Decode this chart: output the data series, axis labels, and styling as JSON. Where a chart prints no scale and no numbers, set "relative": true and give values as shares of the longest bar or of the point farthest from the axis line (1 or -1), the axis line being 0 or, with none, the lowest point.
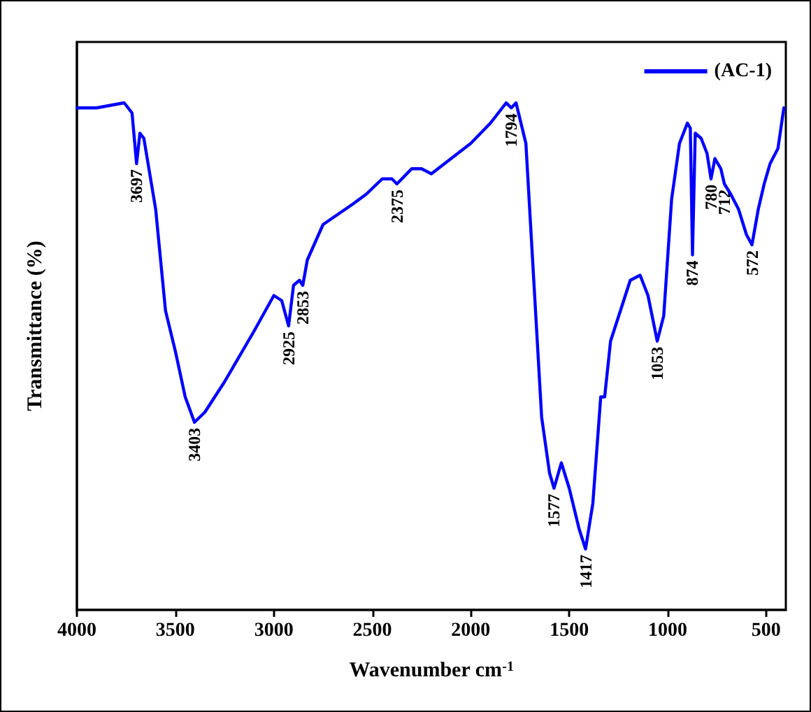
{
  "chart_data": {
    "type": "line",
    "relative": true,
    "xlabel": "Wavenumber cm$^{-1}$",
    "ylabel": "Transmittance (%)",
    "xlim": [
      4000,
      400
    ],
    "xticks": [
      4000,
      3500,
      3000,
      2500,
      2000,
      1500,
      1000,
      500
    ],
    "legend": "top right",
    "grid": false,
    "marker": "none",
    "line_style": "solid",
    "series": [
      {
        "name": "(AC-1)",
        "color": "#0000ff",
        "x": [
          4000,
          3900,
          3760,
          3720,
          3697,
          3680,
          3660,
          3600,
          3550,
          3500,
          3450,
          3403,
          3350,
          3250,
          3100,
          3000,
          2960,
          2925,
          2900,
          2870,
          2853,
          2830,
          2750,
          2600,
          2530,
          2450,
          2400,
          2375,
          2300,
          2250,
          2200,
          2100,
          2000,
          1900,
          1820,
          1794,
          1770,
          1720,
          1680,
          1640,
          1600,
          1577,
          1540,
          1500,
          1450,
          1417,
          1380,
          1340,
          1320,
          1290,
          1240,
          1190,
          1140,
          1100,
          1053,
          1020,
          980,
          940,
          900,
          885,
          874,
          860,
          830,
          800,
          780,
          760,
          730,
          712,
          680,
          640,
          600,
          572,
          540,
          510,
          480,
          440,
          410
        ],
        "values": [
          0.99,
          0.99,
          1.0,
          0.98,
          0.88,
          0.94,
          0.93,
          0.79,
          0.59,
          0.51,
          0.42,
          0.37,
          0.39,
          0.45,
          0.55,
          0.62,
          0.61,
          0.56,
          0.64,
          0.65,
          0.64,
          0.69,
          0.76,
          0.8,
          0.82,
          0.85,
          0.85,
          0.84,
          0.87,
          0.87,
          0.86,
          0.89,
          0.92,
          0.96,
          1.0,
          0.99,
          1.0,
          0.92,
          0.65,
          0.38,
          0.27,
          0.24,
          0.29,
          0.24,
          0.16,
          0.12,
          0.21,
          0.42,
          0.42,
          0.53,
          0.59,
          0.65,
          0.66,
          0.62,
          0.53,
          0.58,
          0.81,
          0.92,
          0.96,
          0.95,
          0.7,
          0.94,
          0.93,
          0.9,
          0.85,
          0.89,
          0.87,
          0.84,
          0.82,
          0.79,
          0.74,
          0.72,
          0.79,
          0.84,
          0.88,
          0.91,
          0.99
        ]
      }
    ],
    "annotations": [
      {
        "text": "3697",
        "x": 3697,
        "y": 0.88
      },
      {
        "text": "3403",
        "x": 3403,
        "y": 0.37
      },
      {
        "text": "2925",
        "x": 2925,
        "y": 0.56
      },
      {
        "text": "2853",
        "x": 2853,
        "y": 0.64
      },
      {
        "text": "2375",
        "x": 2375,
        "y": 0.84
      },
      {
        "text": "1794",
        "x": 1794,
        "y": 0.99
      },
      {
        "text": "1577",
        "x": 1577,
        "y": 0.24
      },
      {
        "text": "1417",
        "x": 1417,
        "y": 0.12
      },
      {
        "text": "1053",
        "x": 1053,
        "y": 0.53
      },
      {
        "text": "874",
        "x": 874,
        "y": 0.7
      },
      {
        "text": "780",
        "x": 780,
        "y": 0.85
      },
      {
        "text": "712",
        "x": 712,
        "y": 0.84
      },
      {
        "text": "572",
        "x": 572,
        "y": 0.72
      }
    ]
  }
}
